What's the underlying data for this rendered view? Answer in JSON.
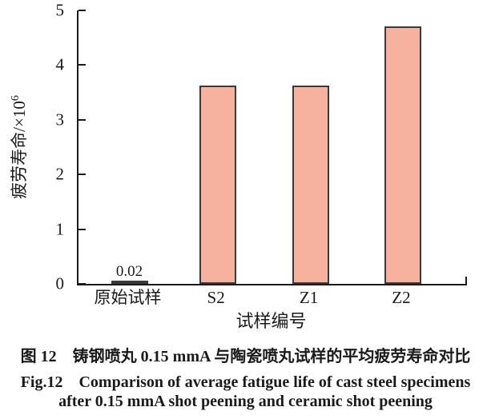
{
  "chart_data": {
    "type": "bar",
    "categories": [
      "原始试样",
      "S2",
      "Z1",
      "Z2"
    ],
    "values": [
      0.02,
      3.63,
      3.62,
      4.71
    ],
    "value_labels": [
      "0.02",
      "",
      "",
      ""
    ],
    "xlabel": "试样编号",
    "ylabel": "疲劳寿命/×10⁶",
    "ylabel_base": "疲劳寿命/×10",
    "ylabel_exp": "6",
    "ylim": [
      0,
      5
    ],
    "yticks": [
      0,
      1,
      2,
      3,
      4,
      5
    ],
    "grid": false,
    "legend": "none",
    "colors": {
      "bar_fill": "#F7B19F",
      "bar_border": "#3A3A3A",
      "axis": "#1A1A1A",
      "text": "#1A1A1A"
    }
  },
  "figure": {
    "caption_zh": "图 12　铸钢喷丸 0.15 mmA 与陶瓷喷丸试样的平均疲劳寿命对比",
    "caption_en_line1": "Fig.12　Comparison of average fatigue life of cast steel specimens",
    "caption_en_line2": "after 0.15 mmA shot peening and ceramic shot peening"
  }
}
